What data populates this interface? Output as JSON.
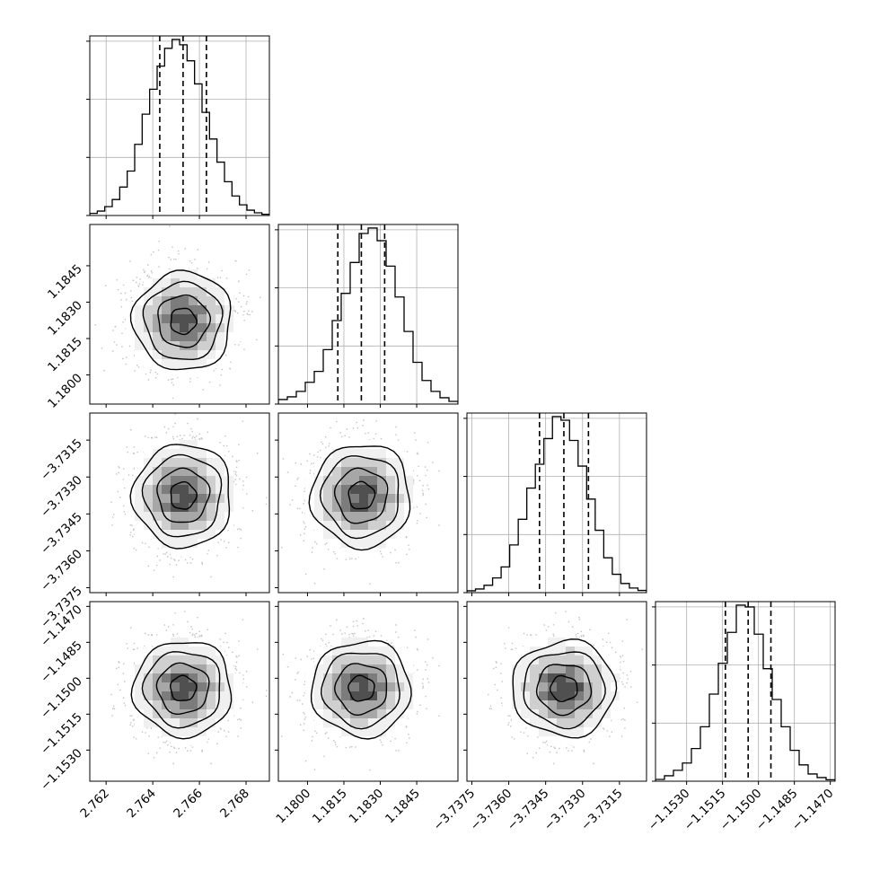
{
  "chart_data": {
    "type": "corner",
    "parameters": [
      {
        "range": [
          2.7613,
          2.769
        ],
        "ticks": [
          2.762,
          2.764,
          2.766,
          2.768
        ],
        "tick_labels": [
          "2.762",
          "2.764",
          "2.766",
          "2.768"
        ],
        "quantiles": [
          2.7643,
          2.7653,
          2.7663
        ],
        "hist": [
          0.012,
          0.025,
          0.05,
          0.09,
          0.16,
          0.25,
          0.4,
          0.57,
          0.71,
          0.84,
          0.94,
          0.99,
          0.96,
          0.87,
          0.74,
          0.58,
          0.43,
          0.3,
          0.19,
          0.11,
          0.06,
          0.03,
          0.015,
          0.007
        ],
        "mean": 2.7653,
        "sigma": 0.001
      },
      {
        "range": [
          1.1788,
          1.1862
        ],
        "ticks": [
          1.18,
          1.1815,
          1.183,
          1.1845
        ],
        "tick_labels": [
          "1.1800",
          "1.1815",
          "1.1830",
          "1.1845"
        ],
        "quantiles": [
          1.18125,
          1.18222,
          1.18318
        ],
        "hist": [
          0.025,
          0.04,
          0.07,
          0.12,
          0.18,
          0.3,
          0.46,
          0.61,
          0.78,
          0.94,
          0.97,
          0.9,
          0.76,
          0.59,
          0.4,
          0.23,
          0.13,
          0.07,
          0.035,
          0.015
        ],
        "mean": 1.18222,
        "sigma": 0.00097
      },
      {
        "range": [
          -3.7377,
          -3.7304
        ],
        "ticks": [
          -3.7375,
          -3.736,
          -3.7345,
          -3.733,
          -3.7315
        ],
        "tick_labels": [
          "−3.7375",
          "−3.7360",
          "−3.7345",
          "−3.7330",
          "−3.7315"
        ],
        "quantiles": [
          -3.73475,
          -3.73376,
          -3.73276
        ],
        "hist": [
          0.01,
          0.02,
          0.04,
          0.08,
          0.14,
          0.26,
          0.4,
          0.57,
          0.7,
          0.84,
          0.96,
          0.94,
          0.83,
          0.69,
          0.51,
          0.34,
          0.19,
          0.1,
          0.05,
          0.025,
          0.012
        ],
        "mean": -3.73376,
        "sigma": 0.001
      },
      {
        "range": [
          -1.1543,
          -1.1468
        ],
        "ticks": [
          -1.153,
          -1.1515,
          -1.15,
          -1.1485,
          -1.147
        ],
        "tick_labels": [
          "−1.1530",
          "−1.1515",
          "−1.1500",
          "−1.1485",
          "−1.1470"
        ],
        "quantiles": [
          -1.15138,
          -1.15043,
          -1.14948
        ],
        "hist": [
          0.01,
          0.03,
          0.06,
          0.1,
          0.18,
          0.3,
          0.48,
          0.65,
          0.82,
          0.97,
          0.96,
          0.81,
          0.62,
          0.45,
          0.3,
          0.17,
          0.09,
          0.04,
          0.02,
          0.008
        ],
        "mean": -1.15043,
        "sigma": 0.00095
      }
    ],
    "style": {
      "line_color": "#000000",
      "grid_color": "#b0b0b0",
      "scatter_color": "#b7b7b7",
      "fill_levels": [
        "#ffffff",
        "#f0f0f0",
        "#cfcfcf",
        "#a7a7a7",
        "#7c7c7c",
        "#505050"
      ]
    }
  }
}
